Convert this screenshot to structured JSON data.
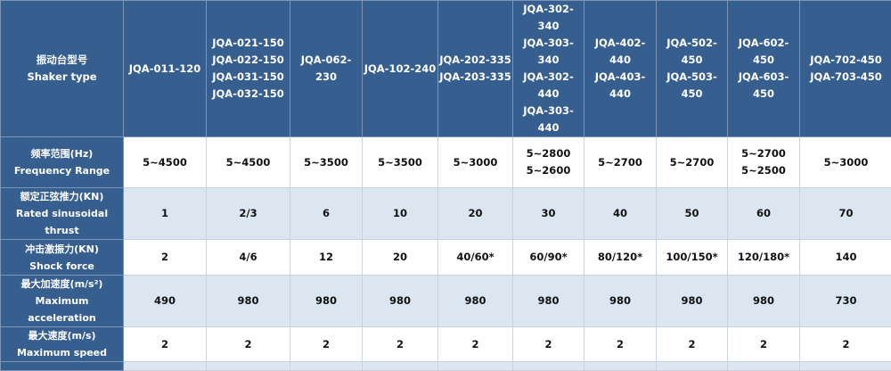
{
  "header": {
    "label_cn": "振动台型号",
    "label_en": "Shaker type",
    "models": [
      [
        "JQA-011-120"
      ],
      [
        "JQA-021-150",
        "JQA-022-150",
        "JQA-031-150",
        "JQA-032-150"
      ],
      [
        "JQA-062-230"
      ],
      [
        "JQA-102-240"
      ],
      [
        "JQA-202-335",
        "JQA-203-335"
      ],
      [
        "JQA-302-340",
        "JQA-303-340",
        "JQA-302-440",
        "JQA-303-440"
      ],
      [
        "JQA-402-440",
        "JQA-403-440"
      ],
      [
        "JQA-502-450",
        "JQA-503-450"
      ],
      [
        "JQA-602-450",
        "JQA-603-450"
      ],
      [
        "JQA-702-450",
        "JQA-703-450"
      ]
    ]
  },
  "rows": [
    {
      "label_cn": "频率范围(Hz)",
      "label_en": "Frequency Range",
      "values": [
        [
          "5~4500"
        ],
        [
          "5~4500"
        ],
        [
          "5~3500"
        ],
        [
          "5~3500"
        ],
        [
          "5~3000"
        ],
        [
          "5~2800",
          "5~2600"
        ],
        [
          "5~2700"
        ],
        [
          "5~2700"
        ],
        [
          "5~2700",
          "5~2500"
        ],
        [
          "5~3000"
        ]
      ]
    },
    {
      "label_cn": "额定正弦推力(KN)",
      "label_en": "Rated sinusoidal thrust",
      "values": [
        [
          "1"
        ],
        [
          "2/3"
        ],
        [
          "6"
        ],
        [
          "10"
        ],
        [
          "20"
        ],
        [
          "30"
        ],
        [
          "40"
        ],
        [
          "50"
        ],
        [
          "60"
        ],
        [
          "70"
        ]
      ]
    },
    {
      "label_cn": "冲击激振力(KN)",
      "label_en": "Shock force",
      "values": [
        [
          "2"
        ],
        [
          "4/6"
        ],
        [
          "12"
        ],
        [
          "20"
        ],
        [
          "40/60*"
        ],
        [
          "60/90*"
        ],
        [
          "80/120*"
        ],
        [
          "100/150*"
        ],
        [
          "120/180*"
        ],
        [
          "140"
        ]
      ]
    },
    {
      "label_cn": "最大加速度(m/s²)",
      "label_en": "Maximum acceleration",
      "values": [
        [
          "490"
        ],
        [
          "980"
        ],
        [
          "980"
        ],
        [
          "980"
        ],
        [
          "980"
        ],
        [
          "980"
        ],
        [
          "980"
        ],
        [
          "980"
        ],
        [
          "980"
        ],
        [
          "730"
        ]
      ]
    },
    {
      "label_cn": "最大速度(m/s)",
      "label_en": "Maximum speed",
      "values": [
        [
          "2"
        ],
        [
          "2"
        ],
        [
          "2"
        ],
        [
          "2"
        ],
        [
          "2"
        ],
        [
          "2"
        ],
        [
          "2"
        ],
        [
          "2"
        ],
        [
          "2"
        ],
        [
          "2"
        ]
      ]
    }
  ],
  "colors": {
    "header_bg": "#365e8f",
    "alt_row_bg": "#dce6f1"
  }
}
